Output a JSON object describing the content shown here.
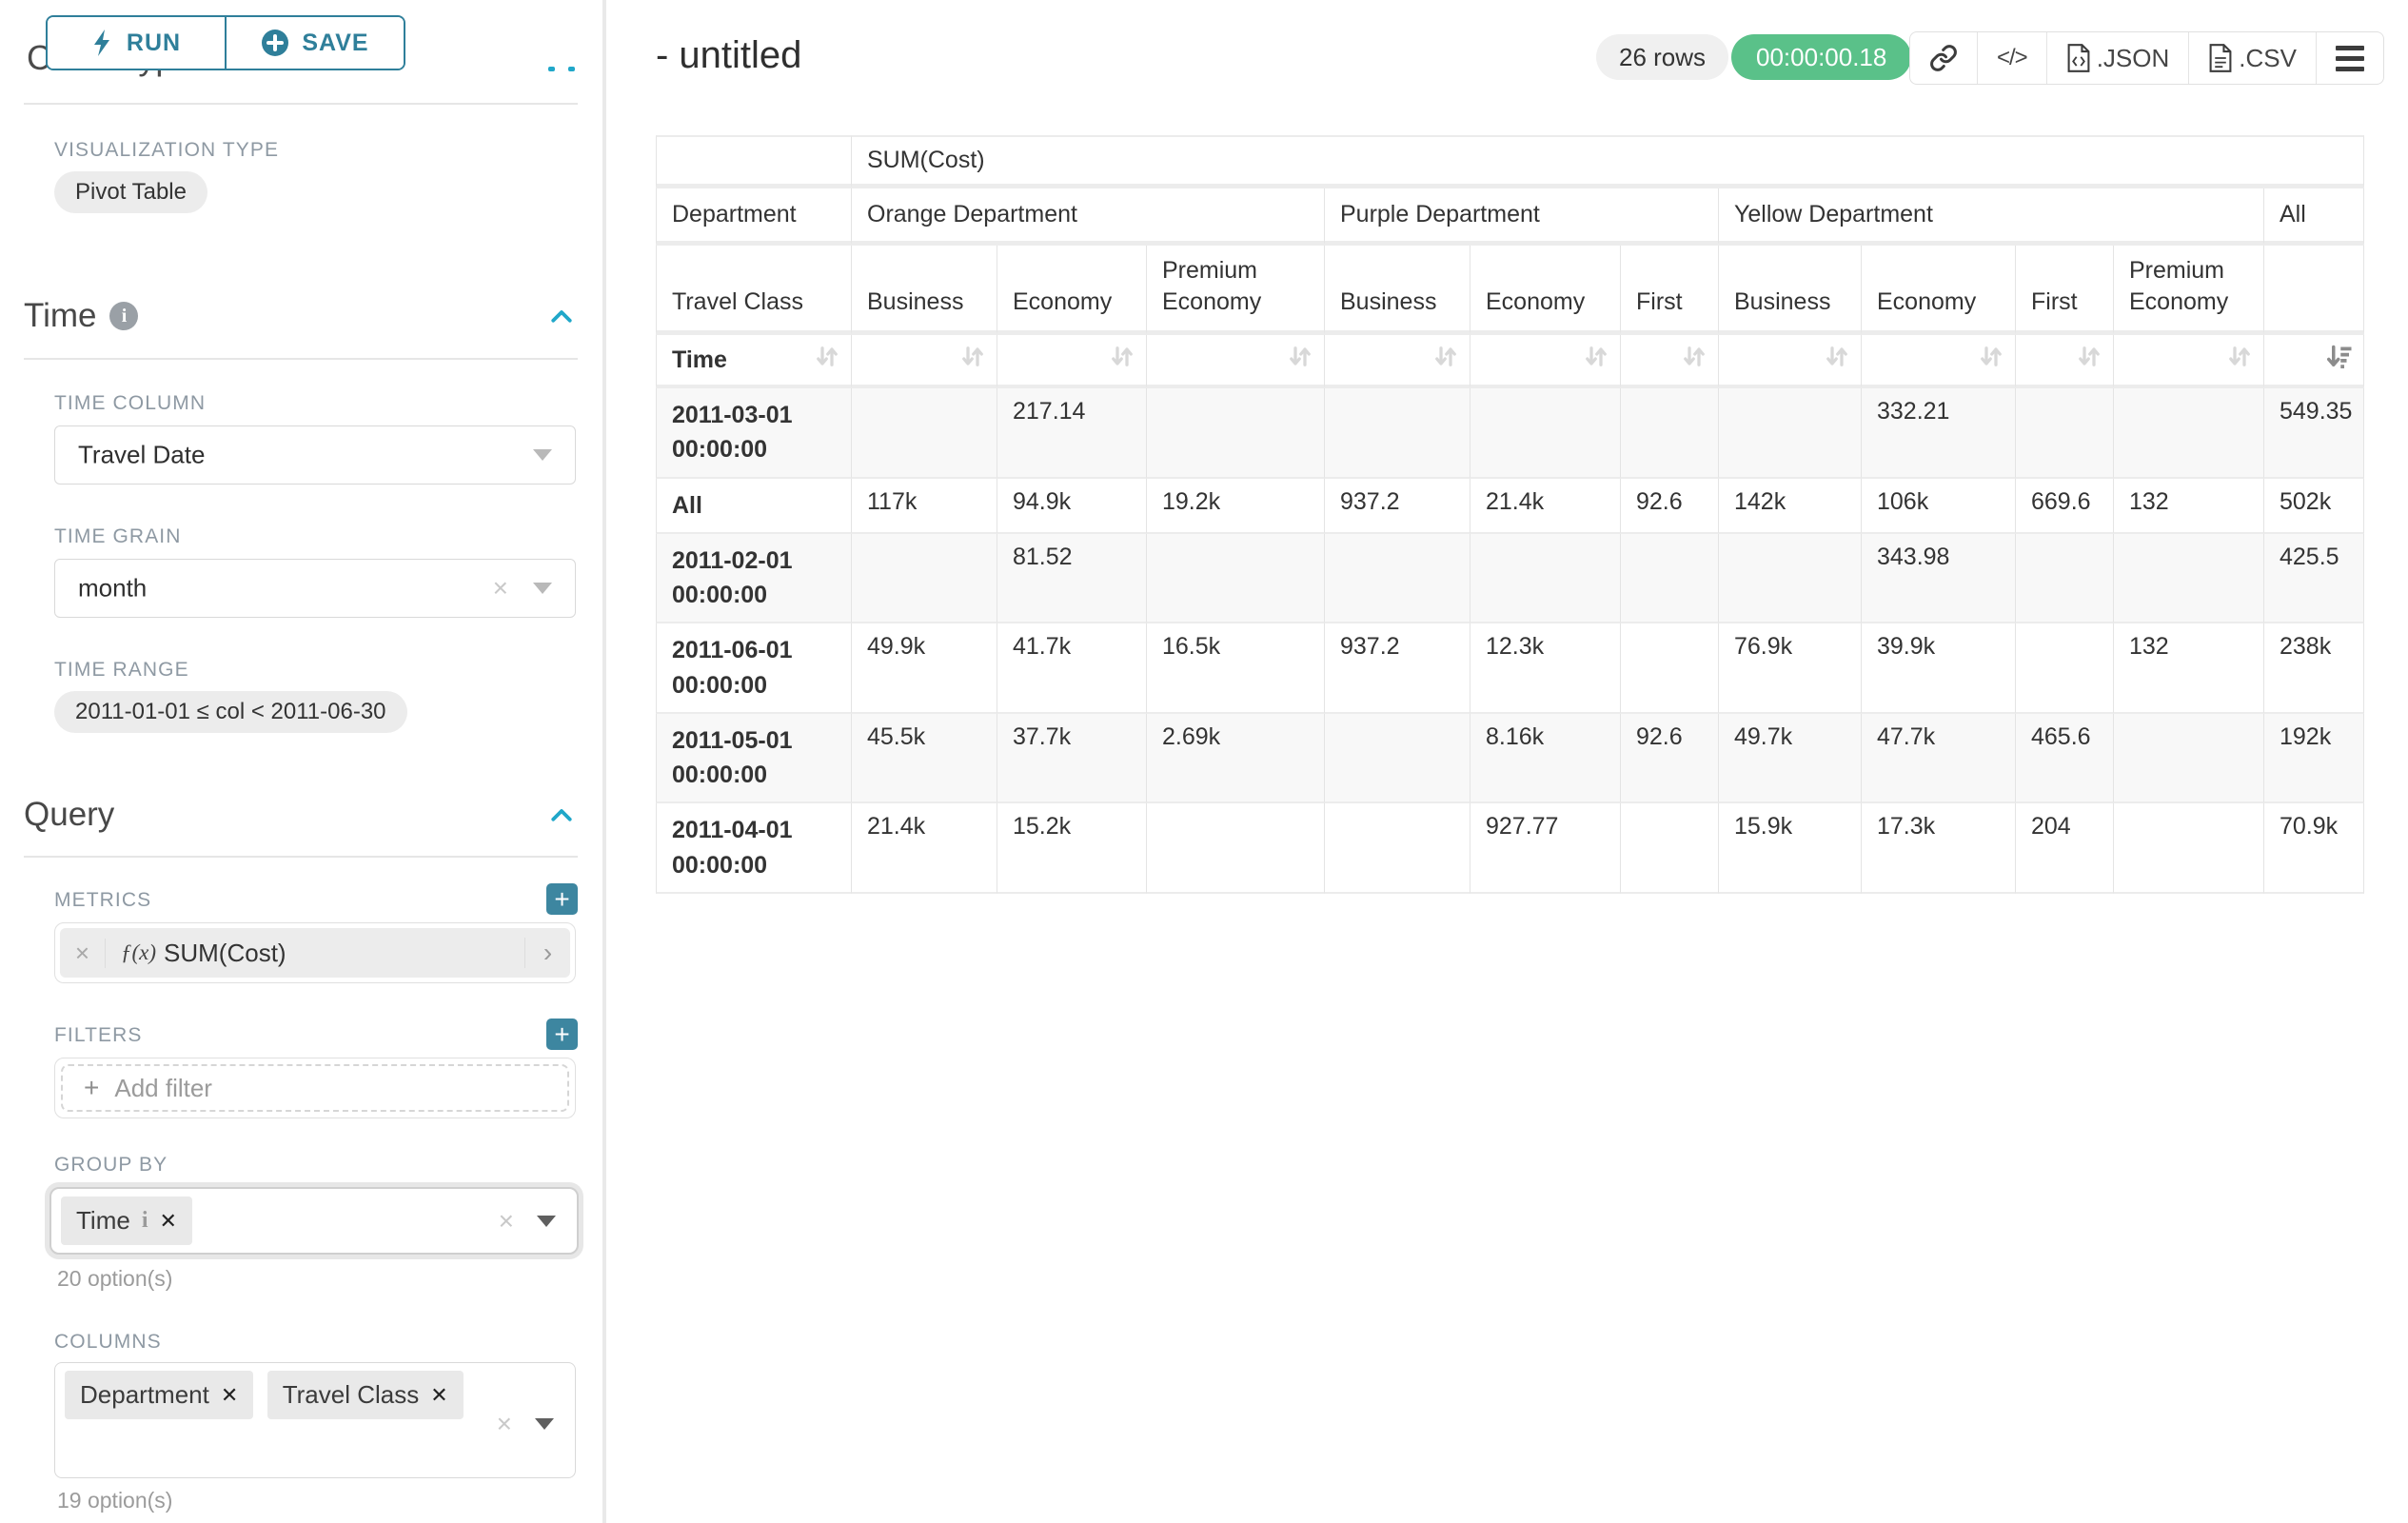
{
  "colors": {
    "accent_teal": "#2f7f9a",
    "plus_button_teal": "#3d86a0",
    "chevron_blue": "#20a7c9",
    "timer_green": "#5ac189",
    "table_border": "#e4e4e4"
  },
  "sidebar": {
    "run_label": "RUN",
    "save_label": "SAVE",
    "chart_type_heading": "Chart Type",
    "visualization_type_label": "VISUALIZATION TYPE",
    "visualization_type_value": "Pivot Table",
    "time": {
      "heading": "Time",
      "time_column_label": "TIME COLUMN",
      "time_column_value": "Travel Date",
      "time_grain_label": "TIME GRAIN",
      "time_grain_value": "month",
      "time_range_label": "TIME RANGE",
      "time_range_value": "2011-01-01 ≤ col < 2011-06-30"
    },
    "query": {
      "heading": "Query",
      "metrics_label": "METRICS",
      "metric_fx": "ƒ(x)",
      "metric_chip": "SUM(Cost)",
      "filters_label": "FILTERS",
      "add_filter_label": "Add filter",
      "group_by_label": "GROUP BY",
      "group_by_chips": [
        "Time"
      ],
      "group_by_hint": "20 option(s)",
      "columns_label": "COLUMNS",
      "columns_chips": [
        "Department",
        "Travel Class"
      ],
      "columns_hint": "19 option(s)"
    }
  },
  "header": {
    "title": "- untitled",
    "rows_badge": "26 rows",
    "timer_badge": "00:00:00.18",
    "json_label": ".JSON",
    "csv_label": ".CSV",
    "embed_glyph": "</>"
  },
  "pivot_table": {
    "metric_header": "SUM(Cost)",
    "corner": {
      "row2": "Department",
      "row3": "Travel Class",
      "row4": "Time"
    },
    "col_groups": [
      {
        "label": "Orange Department",
        "span": 3
      },
      {
        "label": "Purple Department",
        "span": 3
      },
      {
        "label": "Yellow Department",
        "span": 4
      },
      {
        "label": "All",
        "span": 1
      }
    ],
    "sub_columns": [
      "Business",
      "Economy",
      "Premium Economy",
      "Business",
      "Economy",
      "First",
      "Business",
      "Economy",
      "First",
      "Premium Economy",
      ""
    ],
    "rows": [
      {
        "label": "2011-03-01 00:00:00",
        "values": [
          "",
          "217.14",
          "",
          "",
          "",
          "",
          "",
          "332.21",
          "",
          "",
          "549.35"
        ]
      },
      {
        "label": "All",
        "values": [
          "117k",
          "94.9k",
          "19.2k",
          "937.2",
          "21.4k",
          "92.6",
          "142k",
          "106k",
          "669.6",
          "132",
          "502k"
        ]
      },
      {
        "label": "2011-02-01 00:00:00",
        "values": [
          "",
          "81.52",
          "",
          "",
          "",
          "",
          "",
          "343.98",
          "",
          "",
          "425.5"
        ]
      },
      {
        "label": "2011-06-01 00:00:00",
        "values": [
          "49.9k",
          "41.7k",
          "16.5k",
          "937.2",
          "12.3k",
          "",
          "76.9k",
          "39.9k",
          "",
          "132",
          "238k"
        ]
      },
      {
        "label": "2011-05-01 00:00:00",
        "values": [
          "45.5k",
          "37.7k",
          "2.69k",
          "",
          "8.16k",
          "92.6",
          "49.7k",
          "47.7k",
          "465.6",
          "",
          "192k"
        ]
      },
      {
        "label": "2011-04-01 00:00:00",
        "values": [
          "21.4k",
          "15.2k",
          "",
          "",
          "927.77",
          "",
          "15.9k",
          "17.3k",
          "204",
          "",
          "70.9k"
        ]
      }
    ]
  }
}
